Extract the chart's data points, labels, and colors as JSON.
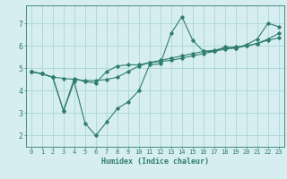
{
  "title": "",
  "xlabel": "Humidex (Indice chaleur)",
  "ylabel": "",
  "background_color": "#d6eef0",
  "grid_color": "#b0d8dc",
  "line_color": "#2e7d6e",
  "xlim": [
    -0.5,
    23.5
  ],
  "ylim": [
    1.5,
    7.8
  ],
  "yticks": [
    2,
    3,
    4,
    5,
    6,
    7
  ],
  "xticks": [
    0,
    1,
    2,
    3,
    4,
    5,
    6,
    7,
    8,
    9,
    10,
    11,
    12,
    13,
    14,
    15,
    16,
    17,
    18,
    19,
    20,
    21,
    22,
    23
  ],
  "series": [
    [
      4.85,
      4.75,
      4.6,
      3.1,
      4.4,
      2.55,
      2.0,
      2.6,
      3.2,
      3.5,
      4.0,
      5.15,
      5.2,
      6.55,
      7.3,
      6.25,
      5.75,
      5.75,
      5.95,
      5.9,
      6.05,
      6.3,
      7.0,
      6.85
    ],
    [
      4.85,
      4.75,
      4.6,
      3.1,
      4.55,
      4.4,
      4.35,
      4.85,
      5.1,
      5.15,
      5.15,
      5.25,
      5.3,
      5.35,
      5.45,
      5.55,
      5.65,
      5.75,
      5.85,
      5.9,
      6.0,
      6.1,
      6.25,
      6.35
    ],
    [
      4.85,
      4.75,
      4.6,
      4.55,
      4.5,
      4.45,
      4.45,
      4.5,
      4.6,
      4.85,
      5.1,
      5.25,
      5.35,
      5.45,
      5.55,
      5.65,
      5.75,
      5.8,
      5.9,
      5.95,
      6.0,
      6.1,
      6.3,
      6.55
    ]
  ]
}
